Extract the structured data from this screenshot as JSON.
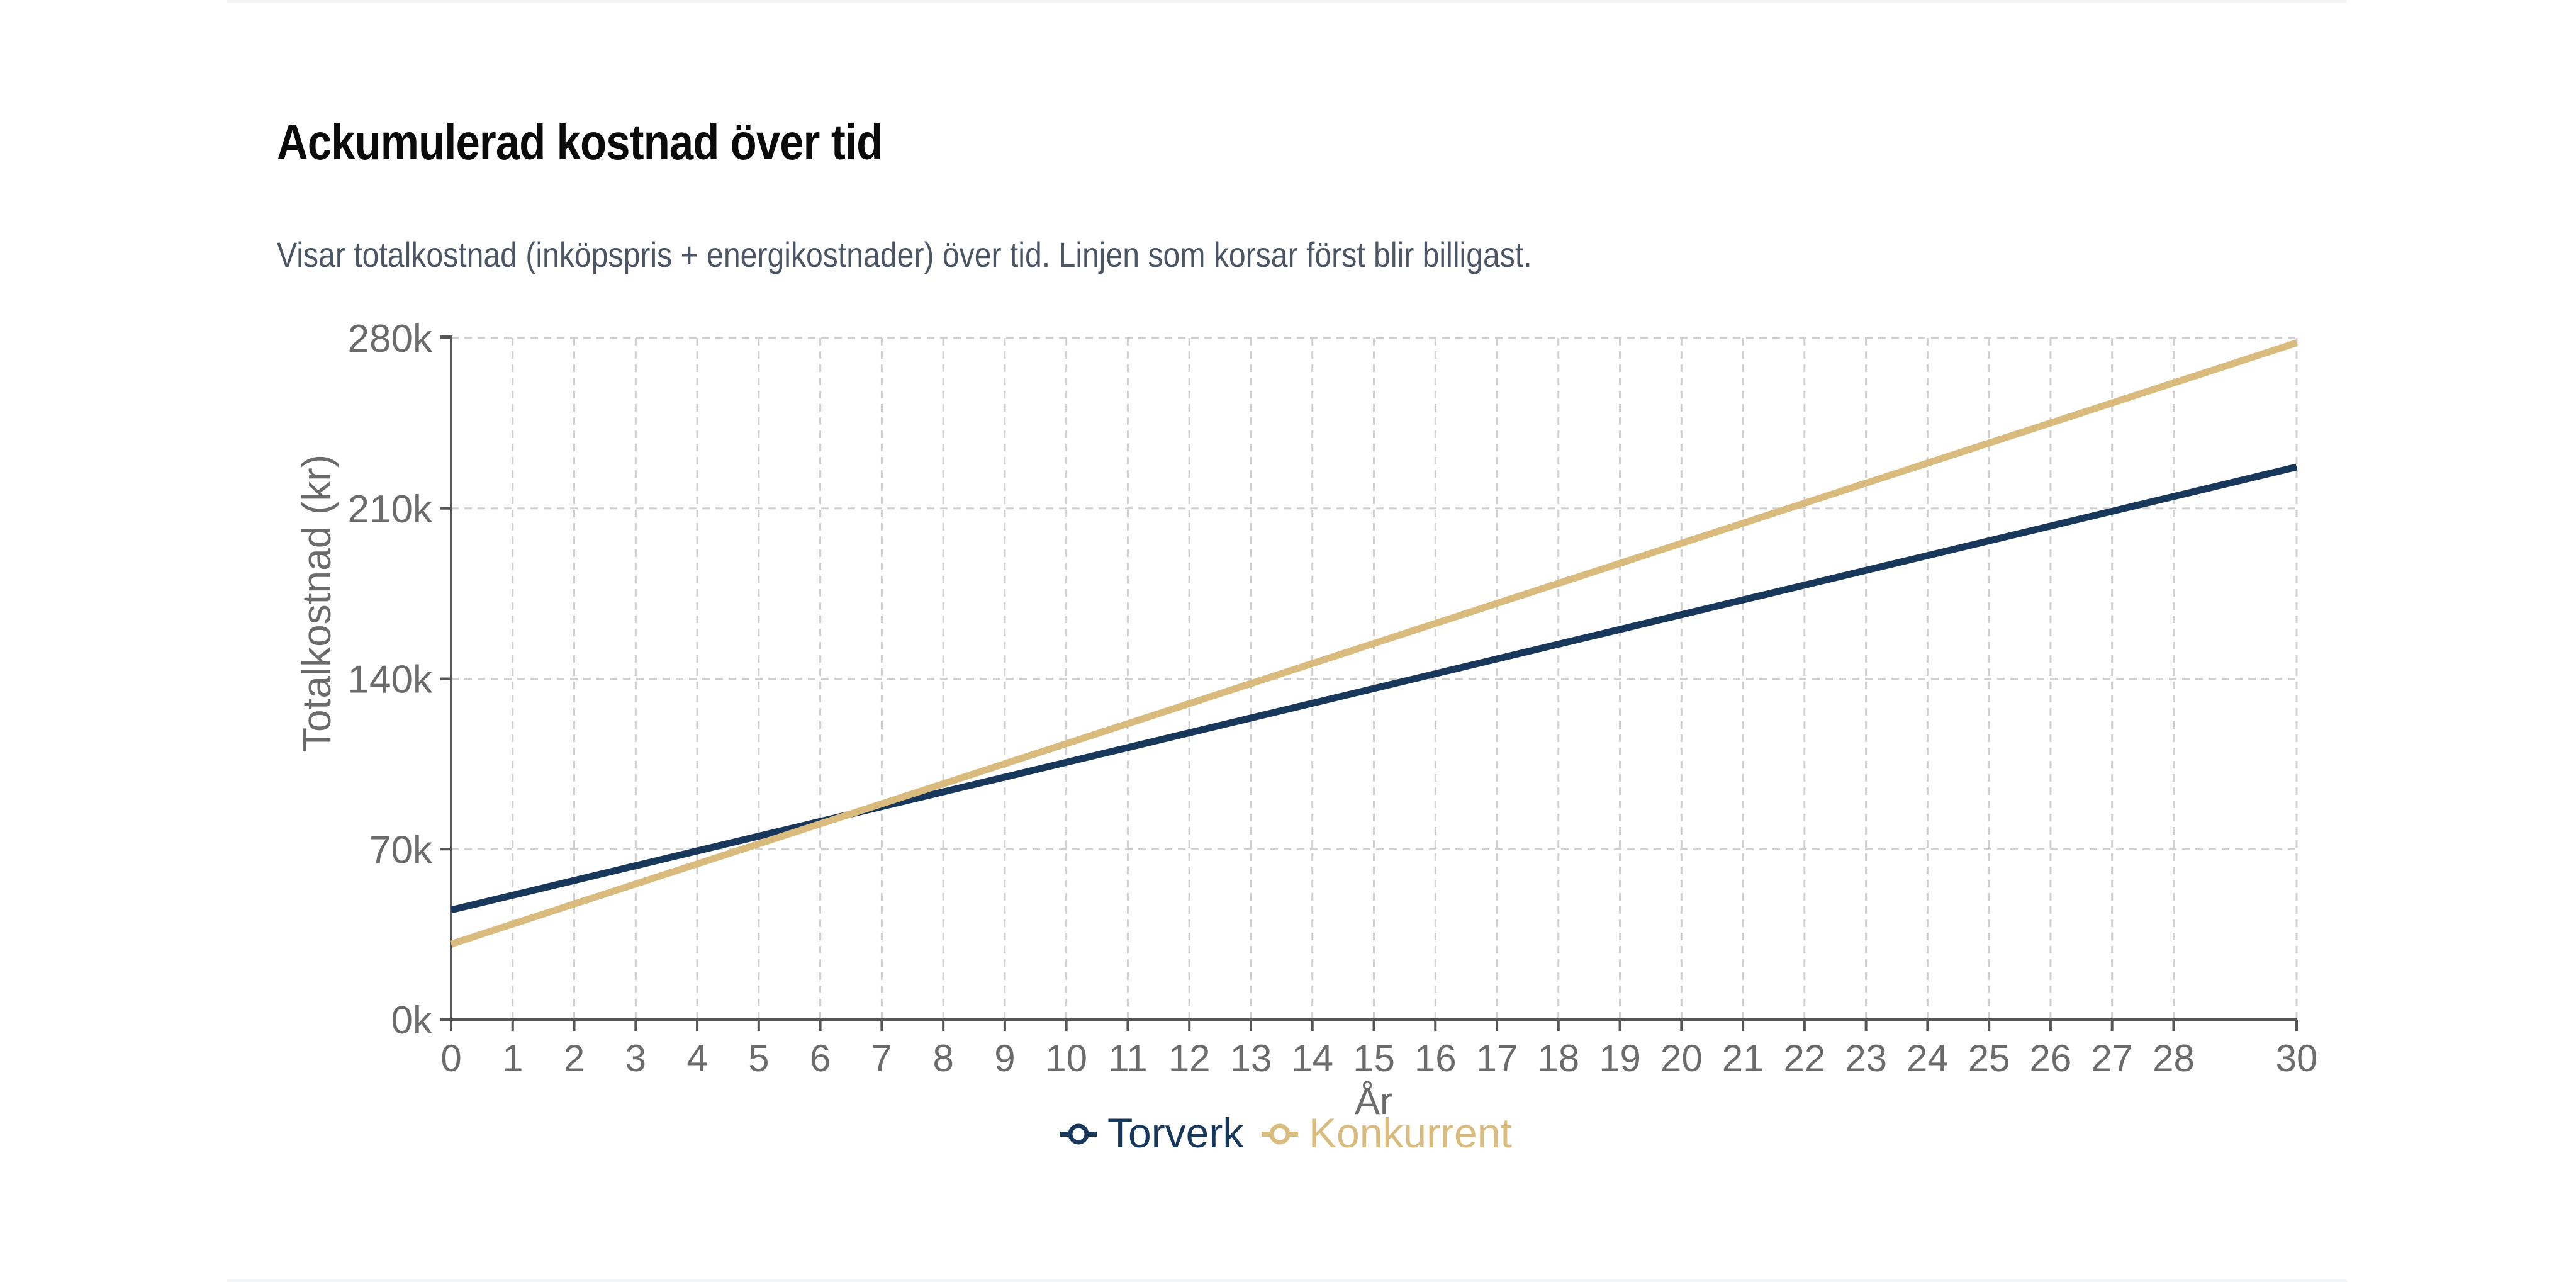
{
  "card": {
    "title": "Ackumulerad kostnad över tid",
    "description": "Visar totalkostnad (inköpspris + energikostnader) över tid. Linjen som korsar först blir billigast."
  },
  "chart_data": {
    "type": "line",
    "title": "Ackumulerad kostnad över tid",
    "xlabel": "År",
    "ylabel": "Totalkostnad (kr)",
    "xlim": [
      0,
      30
    ],
    "ylim": [
      0,
      280000
    ],
    "grid": true,
    "legend_position": "bottom-center",
    "x_ticks": [
      0,
      1,
      2,
      3,
      4,
      5,
      6,
      7,
      8,
      9,
      10,
      11,
      12,
      13,
      14,
      15,
      16,
      17,
      18,
      19,
      20,
      21,
      22,
      23,
      24,
      25,
      26,
      27,
      28,
      30
    ],
    "y_ticks": [
      0,
      70000,
      140000,
      210000,
      280000
    ],
    "y_tick_labels": [
      "0k",
      "70k",
      "140k",
      "210k",
      "280k"
    ],
    "x": [
      0,
      30
    ],
    "series": [
      {
        "name": "Torverk",
        "color": "#17385a",
        "values": [
          45000,
          227000
        ]
      },
      {
        "name": "Konkurrent",
        "color": "#d9bb7e",
        "values": [
          31000,
          278000
        ]
      }
    ]
  }
}
